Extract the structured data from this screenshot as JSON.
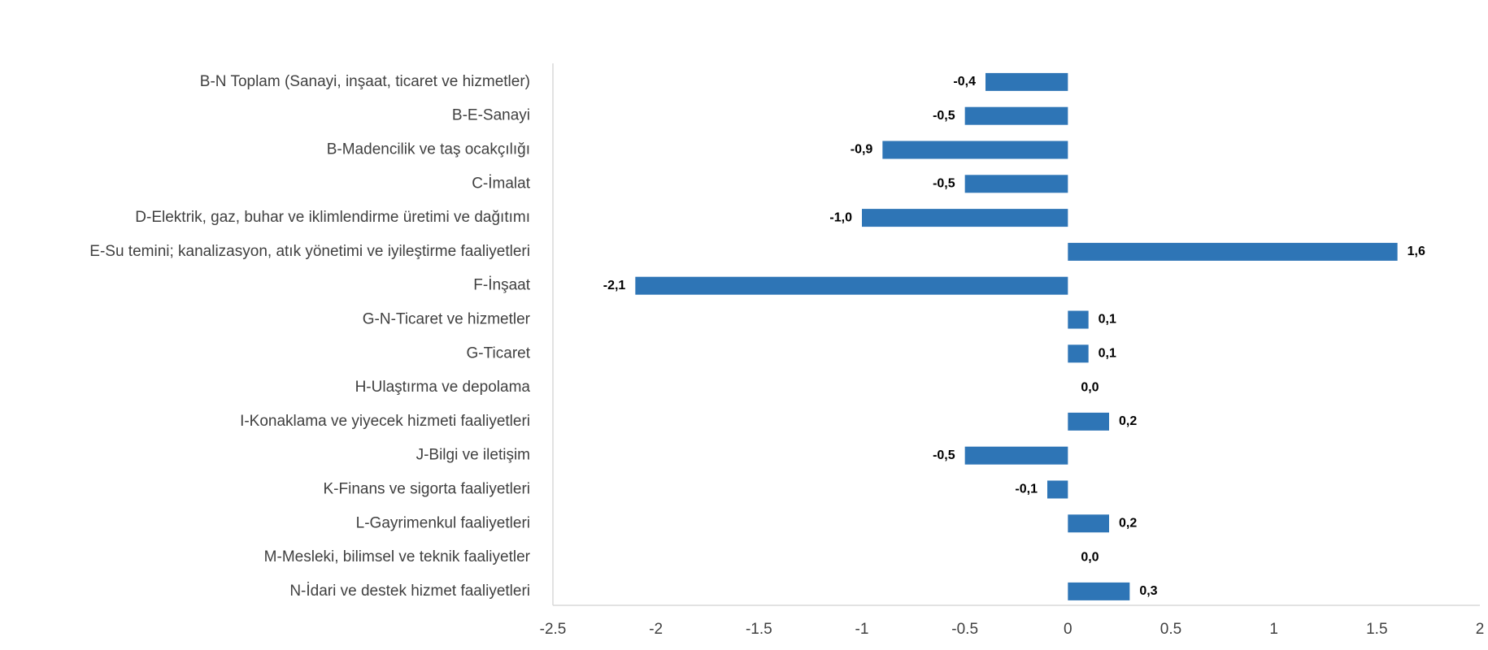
{
  "chart_data": {
    "type": "bar",
    "orientation": "horizontal",
    "title": "",
    "xlabel": "",
    "ylabel": "",
    "xlim": [
      -2.5,
      2
    ],
    "x_ticks": [
      -2.5,
      -2,
      -1.5,
      -1,
      -0.5,
      0,
      0.5,
      1,
      1.5,
      2
    ],
    "x_tick_labels": [
      "-2.5",
      "-2",
      "-1.5",
      "-1",
      "-0.5",
      "0",
      "0.5",
      "1",
      "1.5",
      "2"
    ],
    "grid": false,
    "bar_color": "#2e75b6",
    "categories": [
      "B-N Toplam (Sanayi, inşaat, ticaret ve hizmetler)",
      "B-E-Sanayi",
      "B-Madencilik ve taş ocakçılığı",
      "C-İmalat",
      "D-Elektrik, gaz, buhar ve iklimlendirme üretimi ve dağıtımı",
      "E-Su temini; kanalizasyon, atık yönetimi ve iyileştirme faaliyetleri",
      "F-İnşaat",
      "G-N-Ticaret ve hizmetler",
      "G-Ticaret",
      "H-Ulaştırma ve depolama",
      "I-Konaklama ve yiyecek hizmeti faaliyetleri",
      "J-Bilgi ve iletişim",
      "K-Finans ve sigorta faaliyetleri",
      "L-Gayrimenkul faaliyetleri",
      "M-Mesleki, bilimsel ve teknik faaliyetler",
      "N-İdari ve destek hizmet faaliyetleri"
    ],
    "values": [
      -0.4,
      -0.5,
      -0.9,
      -0.5,
      -1.0,
      1.6,
      -2.1,
      0.1,
      0.1,
      0.0,
      0.2,
      -0.5,
      -0.1,
      0.2,
      0.0,
      0.3
    ],
    "value_labels": [
      "-0,4",
      "-0,5",
      "-0,9",
      "-0,5",
      "-1,0",
      "1,6",
      "-2,1",
      "0,1",
      "0,1",
      "0,0",
      "0,2",
      "-0,5",
      "-0,1",
      "0,2",
      "0,0",
      "0,3"
    ]
  }
}
